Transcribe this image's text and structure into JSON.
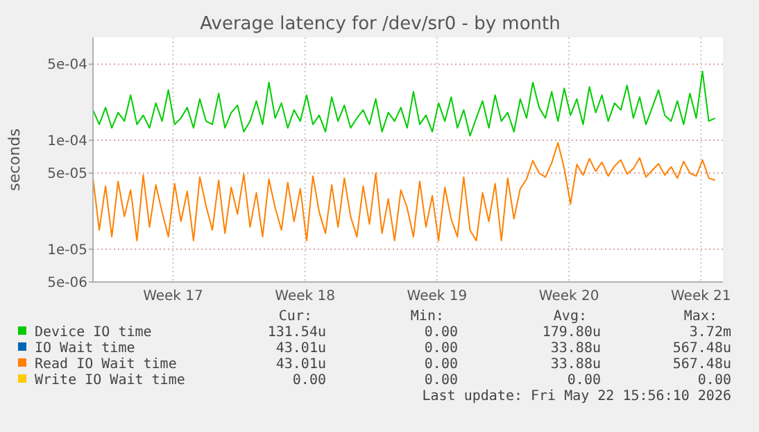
{
  "chart_data": {
    "type": "line",
    "title": "Average latency for /dev/sr0 - by month",
    "ylabel": "seconds",
    "x": [
      "2026-04-19T06:00",
      "2026-04-19T14:00",
      "2026-04-19T22:00",
      "2026-04-20T06:00",
      "2026-04-20T14:00",
      "2026-04-20T22:00",
      "2026-04-21T06:00",
      "2026-04-21T14:00",
      "2026-04-21T22:00",
      "2026-04-22T06:00",
      "2026-04-22T14:00",
      "2026-04-22T22:00",
      "2026-04-23T06:00",
      "2026-04-23T14:00",
      "2026-04-23T22:00",
      "2026-04-24T06:00",
      "2026-04-24T14:00",
      "2026-04-24T22:00",
      "2026-04-25T06:00",
      "2026-04-25T14:00",
      "2026-04-25T22:00",
      "2026-04-26T06:00",
      "2026-04-26T14:00",
      "2026-04-26T22:00",
      "2026-04-27T06:00",
      "2026-04-27T14:00",
      "2026-04-27T22:00",
      "2026-04-28T06:00",
      "2026-04-28T14:00",
      "2026-04-28T22:00",
      "2026-04-29T06:00",
      "2026-04-29T14:00",
      "2026-04-29T22:00",
      "2026-04-30T06:00",
      "2026-04-30T14:00",
      "2026-04-30T22:00",
      "2026-05-01T06:00",
      "2026-05-01T14:00",
      "2026-05-01T22:00",
      "2026-05-02T06:00",
      "2026-05-02T14:00",
      "2026-05-02T22:00",
      "2026-05-03T06:00",
      "2026-05-03T14:00",
      "2026-05-03T22:00",
      "2026-05-04T06:00",
      "2026-05-04T14:00",
      "2026-05-04T22:00",
      "2026-05-05T06:00",
      "2026-05-05T14:00",
      "2026-05-05T22:00",
      "2026-05-06T06:00",
      "2026-05-06T14:00",
      "2026-05-06T22:00",
      "2026-05-07T06:00",
      "2026-05-07T14:00",
      "2026-05-07T22:00",
      "2026-05-08T06:00",
      "2026-05-08T14:00",
      "2026-05-08T22:00",
      "2026-05-09T06:00",
      "2026-05-09T14:00",
      "2026-05-09T22:00",
      "2026-05-10T06:00",
      "2026-05-10T14:00",
      "2026-05-10T22:00",
      "2026-05-11T06:00",
      "2026-05-11T14:00",
      "2026-05-11T22:00",
      "2026-05-12T06:00",
      "2026-05-12T14:00",
      "2026-05-12T22:00",
      "2026-05-13T06:00",
      "2026-05-13T14:00",
      "2026-05-13T22:00",
      "2026-05-14T06:00",
      "2026-05-14T14:00",
      "2026-05-14T22:00",
      "2026-05-15T06:00",
      "2026-05-15T14:00",
      "2026-05-15T22:00",
      "2026-05-16T06:00",
      "2026-05-16T14:00",
      "2026-05-16T22:00",
      "2026-05-17T06:00",
      "2026-05-17T14:00",
      "2026-05-17T22:00",
      "2026-05-18T06:00",
      "2026-05-18T14:00",
      "2026-05-18T22:00",
      "2026-05-19T06:00",
      "2026-05-19T14:00",
      "2026-05-19T22:00",
      "2026-05-20T06:00",
      "2026-05-20T14:00",
      "2026-05-20T22:00",
      "2026-05-21T06:00",
      "2026-05-21T14:00",
      "2026-05-21T22:00",
      "2026-05-22T06:00"
    ],
    "series": [
      {
        "name": "Device IO time",
        "color": "#00cc00",
        "values": [
          0.00019,
          0.00014,
          0.0002,
          0.00013,
          0.00018,
          0.00015,
          0.00026,
          0.00014,
          0.00017,
          0.00013,
          0.00022,
          0.00015,
          0.00029,
          0.00014,
          0.00016,
          0.0002,
          0.00013,
          0.00024,
          0.00015,
          0.00014,
          0.00027,
          0.00013,
          0.00018,
          0.00021,
          0.00012,
          0.00015,
          0.00023,
          0.00014,
          0.00034,
          0.00016,
          0.00022,
          0.00013,
          0.00019,
          0.00015,
          0.00026,
          0.00014,
          0.00017,
          0.00012,
          0.00025,
          0.00015,
          0.00021,
          0.00013,
          0.00016,
          0.00019,
          0.00014,
          0.00024,
          0.00012,
          0.00018,
          0.00015,
          0.0002,
          0.00013,
          0.00028,
          0.00014,
          0.00017,
          0.00012,
          0.00022,
          0.00015,
          0.00025,
          0.00013,
          0.00019,
          0.00011,
          0.00016,
          0.00023,
          0.00013,
          0.00026,
          0.00015,
          0.00018,
          0.00012,
          0.00024,
          0.00016,
          0.00034,
          0.0002,
          0.00016,
          0.00028,
          0.00015,
          0.0003,
          0.00017,
          0.00024,
          0.00014,
          0.00031,
          0.00018,
          0.00026,
          0.00015,
          0.00022,
          0.00019,
          0.00032,
          0.00016,
          0.00025,
          0.00014,
          0.0002,
          0.00029,
          0.00017,
          0.00015,
          0.00023,
          0.00014,
          0.00027,
          0.00016,
          0.00043,
          0.00015,
          0.00016
        ]
      },
      {
        "name": "IO Wait time",
        "color": "#0066b3",
        "values": [
          null,
          null,
          null,
          null,
          null,
          null,
          null,
          null,
          null,
          null,
          null,
          null,
          null,
          null,
          null,
          null,
          null,
          null,
          null,
          null,
          null,
          null,
          null,
          null,
          null,
          null,
          null,
          null,
          null,
          null,
          null,
          null,
          null,
          null,
          null,
          null,
          null,
          null,
          null,
          null,
          null,
          null,
          null,
          null,
          null,
          null,
          null,
          null,
          null,
          null,
          null,
          null,
          null,
          null,
          null,
          null,
          null,
          null,
          null,
          null,
          null,
          null,
          null,
          null,
          null,
          null,
          null,
          null,
          null,
          null,
          null,
          null,
          null,
          null,
          null,
          null,
          null,
          null,
          null,
          null,
          null,
          null,
          null,
          null,
          null,
          null,
          null,
          null,
          null,
          null,
          null,
          null,
          null,
          null,
          null,
          null,
          null,
          null,
          null,
          null
        ]
      },
      {
        "name": "Read IO Wait time",
        "color": "#ff8000",
        "values": [
          4.5e-05,
          1.5e-05,
          3.8e-05,
          1.3e-05,
          4.2e-05,
          2e-05,
          3.5e-05,
          1.2e-05,
          4.8e-05,
          1.6e-05,
          3.9e-05,
          2.2e-05,
          1.3e-05,
          4e-05,
          1.8e-05,
          3.4e-05,
          1.2e-05,
          4.6e-05,
          2.5e-05,
          1.5e-05,
          4.3e-05,
          1.4e-05,
          3.7e-05,
          2.1e-05,
          4.9e-05,
          1.6e-05,
          3.3e-05,
          1.3e-05,
          4.4e-05,
          2.4e-05,
          1.5e-05,
          4.1e-05,
          1.8e-05,
          3.6e-05,
          1.2e-05,
          4.7e-05,
          2.2e-05,
          1.4e-05,
          3.9e-05,
          1.6e-05,
          4.5e-05,
          2e-05,
          1.3e-05,
          3.8e-05,
          1.7e-05,
          5e-05,
          1.4e-05,
          2.9e-05,
          1.2e-05,
          3.5e-05,
          2.4e-05,
          1.3e-05,
          4.2e-05,
          1.6e-05,
          3.1e-05,
          1.2e-05,
          3.7e-05,
          1.9e-05,
          1.3e-05,
          4.6e-05,
          1.5e-05,
          1.2e-05,
          3.3e-05,
          1.8e-05,
          4e-05,
          1.2e-05,
          4.5e-05,
          1.9e-05,
          3.6e-05,
          4.4e-05,
          6.5e-05,
          5e-05,
          4.6e-05,
          6.2e-05,
          9.5e-05,
          5.5e-05,
          2.6e-05,
          6e-05,
          4.8e-05,
          6.8e-05,
          5.2e-05,
          6.3e-05,
          4.7e-05,
          5.8e-05,
          6.6e-05,
          4.9e-05,
          5.5e-05,
          6.9e-05,
          4.6e-05,
          5.3e-05,
          6.1e-05,
          4.8e-05,
          5.7e-05,
          4.5e-05,
          6.4e-05,
          5e-05,
          4.7e-05,
          6.6e-05,
          4.5e-05,
          4.3e-05
        ]
      },
      {
        "name": "Write IO Wait time",
        "color": "#ffcc00",
        "values": [
          null,
          null,
          null,
          null,
          null,
          null,
          null,
          null,
          null,
          null,
          null,
          null,
          null,
          null,
          null,
          null,
          null,
          null,
          null,
          null,
          null,
          null,
          null,
          null,
          null,
          null,
          null,
          null,
          null,
          null,
          null,
          null,
          null,
          null,
          null,
          null,
          null,
          null,
          null,
          null,
          null,
          null,
          null,
          null,
          null,
          null,
          null,
          null,
          null,
          null,
          null,
          null,
          null,
          null,
          null,
          null,
          null,
          null,
          null,
          null,
          null,
          null,
          null,
          null,
          null,
          null,
          null,
          null,
          null,
          null,
          null,
          null,
          null,
          null,
          null,
          null,
          null,
          null,
          null,
          null,
          null,
          null,
          null,
          null,
          null,
          null,
          null,
          null,
          null,
          null,
          null,
          null,
          null,
          null,
          null,
          null,
          null,
          null,
          null,
          null
        ]
      }
    ],
    "xlim": [
      "2026-04-19T06:00",
      "2026-05-22T16:00"
    ],
    "xticks": [
      {
        "value": "2026-04-23T12:00",
        "label": "Week 17"
      },
      {
        "value": "2026-04-30T12:00",
        "label": "Week 18"
      },
      {
        "value": "2026-05-07T12:00",
        "label": "Week 19"
      },
      {
        "value": "2026-05-14T12:00",
        "label": "Week 20"
      },
      {
        "value": "2026-05-21T12:00",
        "label": "Week 21"
      }
    ],
    "ylim": [
      5e-06,
      0.00088
    ],
    "yticks": [
      {
        "value": 5e-06,
        "label": "5e-06"
      },
      {
        "value": 1e-05,
        "label": "1e-05"
      },
      {
        "value": 5e-05,
        "label": "5e-05"
      },
      {
        "value": 0.0001,
        "label": "1e-04"
      },
      {
        "value": 0.0005,
        "label": "5e-04"
      }
    ],
    "log": "y",
    "grid": true,
    "legend": "bottom",
    "marker": "none",
    "line_style": "solid",
    "annotations": [
      "Cur:",
      "Min:",
      "Avg:",
      "Max:",
      "131.54u",
      "0.00",
      "179.80u",
      "3.72m",
      "43.01u",
      "0.00",
      "33.88u",
      "567.48u",
      "43.01u",
      "0.00",
      "33.88u",
      "567.48u",
      "0.00",
      "0.00",
      "0.00",
      "0.00",
      "Last update: Fri May 22 15:56:10 2026"
    ]
  }
}
